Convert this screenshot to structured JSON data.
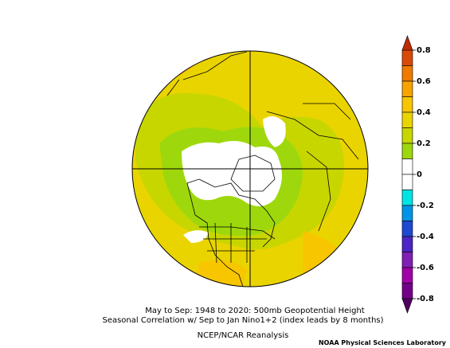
{
  "caption": {
    "lines": [
      "May to Sep: 1948 to 2020: 500mb Geopotential Height",
      "Seasonal Correlation w/ Sep to Jan Nino1+2 (index leads by 8 months)"
    ],
    "source": "NCEP/NCAR Reanalysis"
  },
  "credit": "NOAA Physical Sciences Laboratory",
  "colorbar": {
    "ticks": [
      0.8,
      0.6,
      0.4,
      0.2,
      0,
      -0.2,
      -0.4,
      -0.6,
      -0.8
    ],
    "colors": [
      "#d94a08",
      "#f07a00",
      "#f7a400",
      "#f7c600",
      "#ead400",
      "#c8d600",
      "#9ed80c",
      "#ffffff",
      "#ffffff",
      "#00e4e4",
      "#0094e6",
      "#1e48d2",
      "#4a24c4",
      "#8020b4",
      "#a000a8",
      "#720088"
    ],
    "arrow_top": "#c02a00",
    "arrow_bottom": "#500060"
  }
}
